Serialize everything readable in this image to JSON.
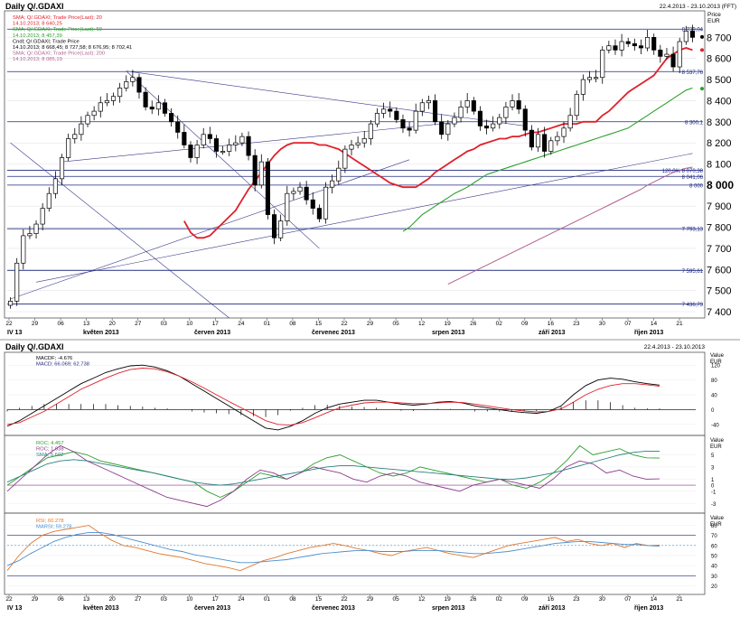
{
  "header": {
    "top_title": "Daily Q/.GDAXI",
    "top_range": "22.4.2013 - 23.10.2013 (FFT)",
    "bottom_title": "Daily Q/.GDAXI",
    "bottom_range": "22.4.2013 - 23.10.2013"
  },
  "price_panel": {
    "unit_top": "Price",
    "unit_bottom": "EUR",
    "legend": [
      "SMA; Q/.GDAXI; Trade Price(Last); 20",
      "14.10.2013; 8 640,25",
      "SMA; Q/.GDAXI; Trade Price(Last); 50",
      "14.10.2013; 8 457,39",
      "Cndl; Q/.GDAXI; Trade Price",
      "14.10.2013; 8 668,45; 8 727,58; 8 676,95; 8 702,41",
      "SMA; Q/.GDAXI; Trade Price(Last); 200",
      "14.10.2013; 8 085,19"
    ],
    "level_labels": [
      "8 739,04",
      "8 537,76",
      "8 300,1",
      "120,0% 8 070,38",
      "8 041,06",
      "8 000",
      "7 793,13",
      "7 595,61",
      "7 436,73"
    ]
  },
  "macd_panel": {
    "legend": [
      "MACDF; -4.676",
      "MACD; 66.069; 62.738"
    ],
    "unit_top": "Value",
    "unit_bottom": "EUR",
    "y_tick_labels": [
      "120",
      "80",
      "40",
      "0",
      "-40"
    ]
  },
  "roc_panel": {
    "legend": [
      "ROC; 4.457",
      "ROC; 1.038",
      "SMA; 5.602"
    ],
    "unit_top": "Value",
    "unit_bottom": "EUR",
    "y_tick_labels": [
      "5",
      "3",
      "1",
      "0",
      "-1",
      "-3"
    ]
  },
  "rsi_panel": {
    "legend": [
      "RSI; 60.278",
      "MARSI; 59.278"
    ],
    "unit_top": "Value",
    "unit_bottom": "EUR",
    "y_tick_labels": [
      "80",
      "70",
      "60",
      "50",
      "40",
      "30",
      "20"
    ]
  },
  "x_axis": {
    "day_ticks": [
      "22",
      "29",
      "06",
      "13",
      "20",
      "27",
      "03",
      "10",
      "17",
      "24",
      "01",
      "08",
      "15",
      "22",
      "29",
      "05",
      "12",
      "19",
      "26",
      "02",
      "09",
      "16",
      "23",
      "30",
      "07",
      "14",
      "21"
    ],
    "month_labels": [
      "IV 13",
      "květen 2013",
      "červen 2013",
      "červenec 2013",
      "srpen 2013",
      "září 2013",
      "říjen 2013"
    ],
    "month_labels_bottom": [
      "IV 13",
      "květen 2013",
      "červen 2013",
      "červenec 2013",
      "srpen 2013",
      "září 2013",
      "říjen 2013"
    ]
  },
  "colors": {
    "candle_up": "#ffffff",
    "candle_down": "#000000",
    "sma20": "#e0202a",
    "sma50": "#2ca02c",
    "sma200": "#b06090",
    "macd_signal": "#e0202a",
    "roc_green": "#2ca02c",
    "roc_purple": "#8a3a8a",
    "roc_sma": "#2a7f7f",
    "rsi": "#e07830",
    "marsi": "#4a8fd0",
    "level_line": "#1f2a80"
  },
  "chart_data": [
    {
      "type": "candlestick",
      "title": "Daily Q/.GDAXI",
      "ylabel": "Price EUR",
      "ylim": [
        7400,
        8800
      ],
      "yticks": [
        7400,
        7500,
        7600,
        7700,
        7800,
        7900,
        8000,
        8100,
        8200,
        8300,
        8400,
        8500,
        8600,
        8700
      ],
      "close": [
        7450,
        7630,
        7760,
        7770,
        7815,
        7890,
        7960,
        8030,
        8130,
        8220,
        8240,
        8290,
        8330,
        8350,
        8390,
        8400,
        8420,
        8460,
        8490,
        8510,
        8440,
        8370,
        8360,
        8390,
        8340,
        8300,
        8250,
        8190,
        8130,
        8190,
        8240,
        8220,
        8160,
        8160,
        8190,
        8200,
        8230,
        8140,
        8000,
        8110,
        7860,
        7750,
        7830,
        7960,
        7970,
        7990,
        7930,
        7890,
        7840,
        7990,
        8020,
        8080,
        8170,
        8190,
        8200,
        8220,
        8290,
        8340,
        8360,
        8350,
        8310,
        8270,
        8260,
        8350,
        8390,
        8400,
        8300,
        8240,
        8290,
        8320,
        8370,
        8400,
        8350,
        8280,
        8270,
        8290,
        8320,
        8370,
        8400,
        8360,
        8260,
        8180,
        8240,
        8160,
        8210,
        8230,
        8270,
        8330,
        8430,
        8500,
        8510,
        8510,
        8640,
        8660,
        8640,
        8680,
        8670,
        8660,
        8650,
        8700,
        8640,
        8610,
        8620,
        8560,
        8680,
        8730,
        8700
      ],
      "sma20": [
        7830,
        7775,
        7750,
        7750,
        7760,
        7790,
        7820,
        7850,
        7880,
        7930,
        7980,
        8020,
        8060,
        8100,
        8140,
        8170,
        8190,
        8200,
        8200,
        8200,
        8200,
        8190,
        8190,
        8180,
        8170,
        8150,
        8130,
        8110,
        8090,
        8070,
        8050,
        8030,
        8010,
        8000,
        7990,
        7990,
        7990,
        8010,
        8030,
        8060,
        8080,
        8100,
        8120,
        8140,
        8160,
        8170,
        8190,
        8200,
        8210,
        8220,
        8220,
        8230,
        8230,
        8240,
        8250,
        8250,
        8260,
        8270,
        8280,
        8290,
        8290,
        8290,
        8300,
        8300,
        8300,
        8330,
        8350,
        8380,
        8410,
        8440,
        8460,
        8480,
        8500,
        8520,
        8560,
        8600,
        8620,
        8640,
        8650,
        8640
      ],
      "sma50": [
        7780,
        7800,
        7830,
        7860,
        7880,
        7900,
        7920,
        7940,
        7960,
        7975,
        7990,
        8010,
        8030,
        8050,
        8060,
        8070,
        8080,
        8090,
        8100,
        8110,
        8120,
        8130,
        8140,
        8150,
        8160,
        8170,
        8180,
        8190,
        8200,
        8210,
        8220,
        8230,
        8240,
        8250,
        8260,
        8270,
        8290,
        8310,
        8330,
        8350,
        8370,
        8390,
        8410,
        8430,
        8450,
        8460
      ],
      "sma200": [
        7530,
        7545,
        7560,
        7575,
        7590,
        7605,
        7620,
        7635,
        7650,
        7665,
        7680,
        7695,
        7710,
        7725,
        7740,
        7755,
        7770,
        7785,
        7800,
        7815,
        7830,
        7845,
        7860,
        7875,
        7890,
        7905,
        7920,
        7935,
        7950,
        7965,
        7980,
        8000,
        8015,
        8030,
        8045,
        8060,
        8070,
        8080,
        8085
      ],
      "horizontal_levels": [
        8739.04,
        8537.76,
        8300.1,
        8070.38,
        8041.06,
        8000,
        7793.13,
        7595.61,
        7436.73
      ]
    },
    {
      "type": "line",
      "title": "MACD",
      "ylim": [
        -60,
        140
      ],
      "yticks": [
        120,
        80,
        40,
        0,
        -40
      ],
      "series": [
        {
          "name": "MACDF",
          "values": [
            -45,
            -30,
            -10,
            10,
            30,
            50,
            70,
            85,
            100,
            110,
            118,
            120,
            115,
            105,
            90,
            70,
            50,
            30,
            10,
            -10,
            -30,
            -50,
            -55,
            -45,
            -30,
            -10,
            5,
            15,
            20,
            25,
            25,
            20,
            15,
            12,
            15,
            20,
            22,
            18,
            10,
            5,
            0,
            -5,
            -8,
            -10,
            -5,
            10,
            40,
            65,
            80,
            85,
            82,
            75,
            70,
            66
          ]
        },
        {
          "name": "MACD",
          "values": [
            -40,
            -35,
            -20,
            -5,
            15,
            35,
            55,
            70,
            85,
            98,
            108,
            112,
            110,
            102,
            90,
            75,
            58,
            40,
            22,
            5,
            -12,
            -30,
            -40,
            -42,
            -35,
            -22,
            -8,
            5,
            12,
            18,
            20,
            20,
            18,
            16,
            16,
            18,
            20,
            19,
            15,
            10,
            5,
            0,
            -4,
            -6,
            -5,
            2,
            20,
            40,
            55,
            65,
            70,
            70,
            67,
            63
          ]
        },
        {
          "name": "MACDF histogram",
          "values": [
            -5,
            5,
            10,
            15,
            15,
            15,
            15,
            15,
            15,
            12,
            10,
            8,
            5,
            3,
            0,
            -5,
            -8,
            -10,
            -12,
            -15,
            -18,
            -20,
            -15,
            -3,
            5,
            12,
            13,
            10,
            8,
            7,
            5,
            0,
            -3,
            -4,
            -1,
            2,
            2,
            -1,
            -5,
            -5,
            -5,
            -5,
            -4,
            -4,
            0,
            8,
            20,
            25,
            25,
            20,
            12,
            5,
            3,
            3
          ]
        }
      ]
    },
    {
      "type": "line",
      "title": "ROC",
      "ylim": [
        -4,
        7
      ],
      "yticks": [
        5,
        3,
        1,
        0,
        -1,
        -3
      ],
      "series": [
        {
          "name": "ROC",
          "values": [
            0,
            1.5,
            3,
            4.5,
            5,
            5.5,
            5,
            4,
            3.5,
            3,
            2.5,
            2,
            1.5,
            1,
            0.5,
            -1,
            -2,
            -1,
            0.5,
            2,
            1.5,
            1,
            2,
            3.5,
            4.5,
            5,
            4,
            3,
            2,
            1.5,
            2,
            3,
            2.5,
            2,
            1.5,
            1,
            0.5,
            1,
            0,
            -0.5,
            0.5,
            2,
            4,
            6.5,
            5,
            5.5,
            6,
            5,
            4.5,
            4.457
          ]
        },
        {
          "name": "ROC",
          "values": [
            -1,
            1,
            3,
            5,
            6.5,
            5.5,
            4,
            3,
            2,
            1,
            0,
            -1,
            -2,
            -2.5,
            -3,
            -3.5,
            -2.5,
            -1,
            1,
            2.5,
            2,
            1,
            2,
            3,
            2.5,
            2,
            1,
            0.5,
            1.5,
            2,
            1.5,
            0.5,
            0,
            -0.5,
            -1,
            0,
            0.5,
            1,
            0.5,
            0,
            -0.5,
            1,
            3,
            4,
            3.5,
            2,
            2.5,
            1.5,
            1,
            1.038
          ]
        },
        {
          "name": "SMA",
          "values": [
            0.5,
            1.5,
            2.5,
            3.5,
            4,
            4.2,
            4,
            3.6,
            3.2,
            2.8,
            2.4,
            2,
            1.5,
            1,
            0.5,
            0.2,
            0,
            0.2,
            0.6,
            1,
            1.4,
            1.8,
            2.2,
            2.6,
            3,
            3.2,
            3.2,
            3,
            2.8,
            2.6,
            2.4,
            2.2,
            2,
            1.8,
            1.6,
            1.4,
            1.2,
            1,
            1,
            1.2,
            1.6,
            2,
            2.6,
            3.2,
            3.8,
            4.4,
            5,
            5.4,
            5.6,
            5.602
          ]
        }
      ]
    },
    {
      "type": "line",
      "title": "RSI",
      "ylim": [
        15,
        85
      ],
      "yticks": [
        80,
        70,
        60,
        50,
        40,
        30,
        20
      ],
      "series": [
        {
          "name": "RSI",
          "values": [
            35,
            50,
            62,
            70,
            74,
            76,
            78,
            80,
            72,
            65,
            60,
            58,
            55,
            52,
            50,
            48,
            45,
            42,
            40,
            38,
            35,
            40,
            45,
            48,
            52,
            55,
            58,
            60,
            62,
            60,
            57,
            55,
            52,
            50,
            54,
            56,
            58,
            55,
            52,
            50,
            48,
            52,
            56,
            60,
            62,
            64,
            66,
            68,
            64,
            66,
            62,
            60,
            62,
            58,
            62,
            60,
            60.278
          ]
        },
        {
          "name": "MARSI",
          "values": [
            40,
            45,
            52,
            58,
            64,
            68,
            71,
            73,
            73,
            71,
            68,
            65,
            62,
            59,
            56,
            54,
            51,
            49,
            47,
            45,
            43,
            43,
            44,
            45,
            46,
            48,
            50,
            52,
            53,
            54,
            55,
            55,
            54,
            54,
            54,
            55,
            55,
            55,
            54,
            53,
            52,
            52,
            53,
            54,
            56,
            58,
            60,
            62,
            63,
            64,
            64,
            63,
            62,
            61,
            61,
            60,
            59.278
          ]
        }
      ]
    }
  ]
}
